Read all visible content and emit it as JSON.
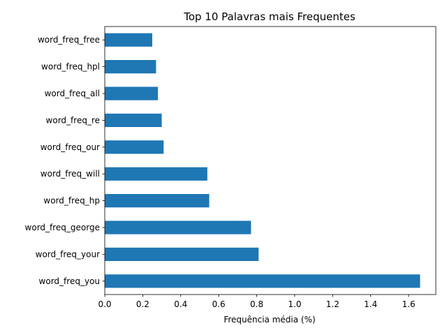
{
  "chart_data": {
    "type": "bar",
    "orientation": "horizontal",
    "title": "Top 10 Palavras mais Frequentes",
    "xlabel": "Frequência média (%)",
    "ylabel": "",
    "categories": [
      "word_freq_you",
      "word_freq_your",
      "word_freq_george",
      "word_freq_hp",
      "word_freq_will",
      "word_freq_our",
      "word_freq_re",
      "word_freq_all",
      "word_freq_hpl",
      "word_freq_free"
    ],
    "values": [
      1.66,
      0.81,
      0.77,
      0.55,
      0.54,
      0.31,
      0.3,
      0.28,
      0.27,
      0.25
    ],
    "xlim": [
      0,
      1.743
    ],
    "xticks": [
      0.0,
      0.2,
      0.4,
      0.6,
      0.8,
      1.0,
      1.2,
      1.4,
      1.6
    ],
    "xtick_labels": [
      "0.0",
      "0.2",
      "0.4",
      "0.6",
      "0.8",
      "1.0",
      "1.2",
      "1.4",
      "1.6"
    ],
    "grid": false,
    "legend": "none",
    "bar_color": "#1f77b4"
  }
}
